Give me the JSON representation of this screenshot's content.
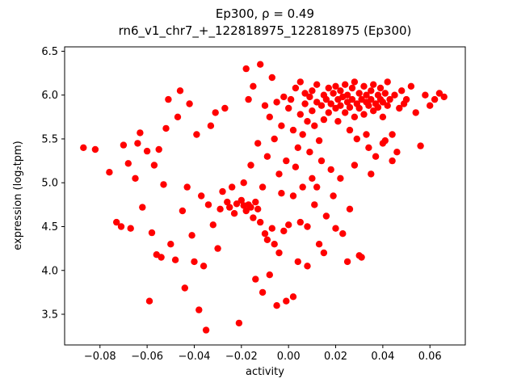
{
  "chart_data": {
    "type": "scatter",
    "title": "Ep300, ρ = 0.49",
    "subtitle": "rn6_v1_chr7_+_122818975_122818975 (Ep300)",
    "xlabel": "activity",
    "ylabel": "expression (log₂tpm)",
    "marker_color": "#ff0000",
    "grid": false,
    "legend": "none",
    "xlim": [
      -0.095,
      0.075
    ],
    "ylim": [
      3.15,
      6.55
    ],
    "x_tick_values": [
      -0.08,
      -0.06,
      -0.04,
      -0.02,
      0.0,
      0.02,
      0.04,
      0.06
    ],
    "x_tick_labels": [
      "−0.08",
      "−0.06",
      "−0.04",
      "−0.02",
      "0.00",
      "0.02",
      "0.04",
      "0.06"
    ],
    "y_tick_values": [
      3.5,
      4.0,
      4.5,
      5.0,
      5.5,
      6.0,
      6.5
    ],
    "y_tick_labels": [
      "3.5",
      "4.0",
      "4.5",
      "5.0",
      "5.5",
      "6.0",
      "6.5"
    ],
    "points": [
      [
        -0.087,
        5.4
      ],
      [
        -0.082,
        5.38
      ],
      [
        -0.076,
        5.12
      ],
      [
        -0.073,
        4.55
      ],
      [
        -0.071,
        4.5
      ],
      [
        -0.07,
        5.43
      ],
      [
        -0.068,
        5.22
      ],
      [
        -0.067,
        4.48
      ],
      [
        -0.065,
        5.05
      ],
      [
        -0.064,
        5.45
      ],
      [
        -0.063,
        5.57
      ],
      [
        -0.062,
        4.72
      ],
      [
        -0.06,
        5.36
      ],
      [
        -0.059,
        3.65
      ],
      [
        -0.058,
        4.43
      ],
      [
        -0.057,
        5.2
      ],
      [
        -0.056,
        4.18
      ],
      [
        -0.055,
        5.38
      ],
      [
        -0.054,
        4.15
      ],
      [
        -0.053,
        4.98
      ],
      [
        -0.052,
        5.62
      ],
      [
        -0.051,
        5.95
      ],
      [
        -0.05,
        4.3
      ],
      [
        -0.048,
        4.12
      ],
      [
        -0.047,
        5.75
      ],
      [
        -0.046,
        6.05
      ],
      [
        -0.045,
        4.68
      ],
      [
        -0.044,
        3.8
      ],
      [
        -0.043,
        4.95
      ],
      [
        -0.042,
        5.9
      ],
      [
        -0.041,
        4.4
      ],
      [
        -0.04,
        4.1
      ],
      [
        -0.039,
        5.55
      ],
      [
        -0.038,
        3.55
      ],
      [
        -0.037,
        4.85
      ],
      [
        -0.036,
        4.05
      ],
      [
        -0.035,
        3.32
      ],
      [
        -0.034,
        4.75
      ],
      [
        -0.033,
        5.65
      ],
      [
        -0.032,
        4.52
      ],
      [
        -0.031,
        5.8
      ],
      [
        -0.03,
        4.25
      ],
      [
        -0.029,
        4.7
      ],
      [
        -0.028,
        4.9
      ],
      [
        -0.027,
        5.85
      ],
      [
        -0.026,
        4.78
      ],
      [
        -0.025,
        4.72
      ],
      [
        -0.024,
        4.95
      ],
      [
        -0.023,
        4.65
      ],
      [
        -0.022,
        4.76
      ],
      [
        -0.021,
        3.4
      ],
      [
        -0.02,
        4.8
      ],
      [
        -0.019,
        4.74
      ],
      [
        -0.019,
        5.0
      ],
      [
        -0.018,
        4.68
      ],
      [
        -0.018,
        6.3
      ],
      [
        -0.017,
        4.75
      ],
      [
        -0.017,
        5.95
      ],
      [
        -0.016,
        4.72
      ],
      [
        -0.016,
        5.2
      ],
      [
        -0.015,
        4.6
      ],
      [
        -0.015,
        6.1
      ],
      [
        -0.014,
        4.78
      ],
      [
        -0.014,
        3.9
      ],
      [
        -0.013,
        4.7
      ],
      [
        -0.013,
        5.45
      ],
      [
        -0.012,
        4.55
      ],
      [
        -0.012,
        6.35
      ],
      [
        -0.011,
        4.95
      ],
      [
        -0.011,
        3.75
      ],
      [
        -0.01,
        4.42
      ],
      [
        -0.01,
        5.88
      ],
      [
        -0.009,
        4.35
      ],
      [
        -0.009,
        5.3
      ],
      [
        -0.008,
        3.95
      ],
      [
        -0.008,
        5.75
      ],
      [
        -0.007,
        4.48
      ],
      [
        -0.007,
        6.2
      ],
      [
        -0.006,
        4.3
      ],
      [
        -0.006,
        5.5
      ],
      [
        -0.005,
        3.6
      ],
      [
        -0.005,
        5.92
      ],
      [
        -0.004,
        4.2
      ],
      [
        -0.004,
        5.1
      ],
      [
        -0.003,
        4.88
      ],
      [
        -0.003,
        5.65
      ],
      [
        -0.002,
        4.45
      ],
      [
        -0.002,
        5.98
      ],
      [
        -0.001,
        3.65
      ],
      [
        -0.001,
        5.25
      ],
      [
        0.0,
        4.52
      ],
      [
        0.0,
        5.85
      ],
      [
        0.001,
        5.95
      ],
      [
        0.002,
        5.6
      ],
      [
        0.002,
        4.85
      ],
      [
        0.002,
        3.7
      ],
      [
        0.003,
        6.08
      ],
      [
        0.003,
        5.18
      ],
      [
        0.004,
        5.4
      ],
      [
        0.004,
        4.1
      ],
      [
        0.005,
        5.78
      ],
      [
        0.005,
        6.15
      ],
      [
        0.005,
        4.55
      ],
      [
        0.006,
        5.55
      ],
      [
        0.006,
        4.95
      ],
      [
        0.007,
        5.9
      ],
      [
        0.007,
        6.02
      ],
      [
        0.008,
        5.7
      ],
      [
        0.008,
        4.5
      ],
      [
        0.008,
        4.05
      ],
      [
        0.009,
        5.98
      ],
      [
        0.009,
        5.35
      ],
      [
        0.01,
        6.05
      ],
      [
        0.01,
        5.82
      ],
      [
        0.01,
        5.05
      ],
      [
        0.011,
        5.65
      ],
      [
        0.011,
        4.75
      ],
      [
        0.012,
        5.92
      ],
      [
        0.012,
        6.12
      ],
      [
        0.012,
        4.95
      ],
      [
        0.013,
        5.48
      ],
      [
        0.013,
        4.3
      ],
      [
        0.014,
        5.88
      ],
      [
        0.014,
        5.25
      ],
      [
        0.015,
        6.0
      ],
      [
        0.015,
        5.72
      ],
      [
        0.015,
        4.2
      ],
      [
        0.016,
        5.95
      ],
      [
        0.016,
        4.62
      ],
      [
        0.017,
        5.8
      ],
      [
        0.017,
        6.08
      ],
      [
        0.018,
        5.9
      ],
      [
        0.018,
        5.15
      ],
      [
        0.019,
        6.02
      ],
      [
        0.019,
        4.85
      ],
      [
        0.02,
        5.85
      ],
      [
        0.02,
        6.1
      ],
      [
        0.02,
        4.48
      ],
      [
        0.021,
        5.95
      ],
      [
        0.021,
        5.7
      ],
      [
        0.022,
        6.05
      ],
      [
        0.022,
        5.88
      ],
      [
        0.022,
        5.05
      ],
      [
        0.023,
        5.98
      ],
      [
        0.023,
        4.42
      ],
      [
        0.024,
        6.12
      ],
      [
        0.024,
        5.8
      ],
      [
        0.025,
        5.92
      ],
      [
        0.025,
        6.0
      ],
      [
        0.025,
        4.1
      ],
      [
        0.026,
        5.86
      ],
      [
        0.026,
        5.6
      ],
      [
        0.026,
        4.7
      ],
      [
        0.027,
        6.08
      ],
      [
        0.027,
        5.95
      ],
      [
        0.028,
        5.75
      ],
      [
        0.028,
        6.15
      ],
      [
        0.028,
        5.2
      ],
      [
        0.029,
        5.9
      ],
      [
        0.029,
        5.5
      ],
      [
        0.03,
        6.02
      ],
      [
        0.03,
        5.85
      ],
      [
        0.03,
        4.17
      ],
      [
        0.031,
        5.95
      ],
      [
        0.031,
        4.15
      ],
      [
        0.032,
        6.1
      ],
      [
        0.032,
        5.78
      ],
      [
        0.033,
        5.92
      ],
      [
        0.033,
        6.0
      ],
      [
        0.033,
        5.55
      ],
      [
        0.034,
        5.88
      ],
      [
        0.034,
        5.4
      ],
      [
        0.035,
        6.05
      ],
      [
        0.035,
        5.95
      ],
      [
        0.035,
        5.1
      ],
      [
        0.036,
        5.82
      ],
      [
        0.036,
        6.12
      ],
      [
        0.037,
        5.9
      ],
      [
        0.037,
        5.3
      ],
      [
        0.038,
        6.0
      ],
      [
        0.038,
        5.86
      ],
      [
        0.039,
        5.95
      ],
      [
        0.039,
        6.08
      ],
      [
        0.04,
        5.75
      ],
      [
        0.04,
        5.92
      ],
      [
        0.04,
        5.45
      ],
      [
        0.041,
        6.02
      ],
      [
        0.041,
        5.48
      ],
      [
        0.042,
        5.88
      ],
      [
        0.042,
        6.15
      ],
      [
        0.043,
        5.95
      ],
      [
        0.044,
        5.55
      ],
      [
        0.044,
        5.25
      ],
      [
        0.045,
        6.0
      ],
      [
        0.046,
        5.35
      ],
      [
        0.047,
        5.85
      ],
      [
        0.048,
        6.05
      ],
      [
        0.049,
        5.9
      ],
      [
        0.05,
        5.95
      ],
      [
        0.052,
        6.1
      ],
      [
        0.054,
        5.8
      ],
      [
        0.056,
        5.42
      ],
      [
        0.058,
        6.0
      ],
      [
        0.06,
        5.88
      ],
      [
        0.062,
        5.95
      ],
      [
        0.064,
        6.02
      ],
      [
        0.066,
        5.98
      ]
    ]
  }
}
